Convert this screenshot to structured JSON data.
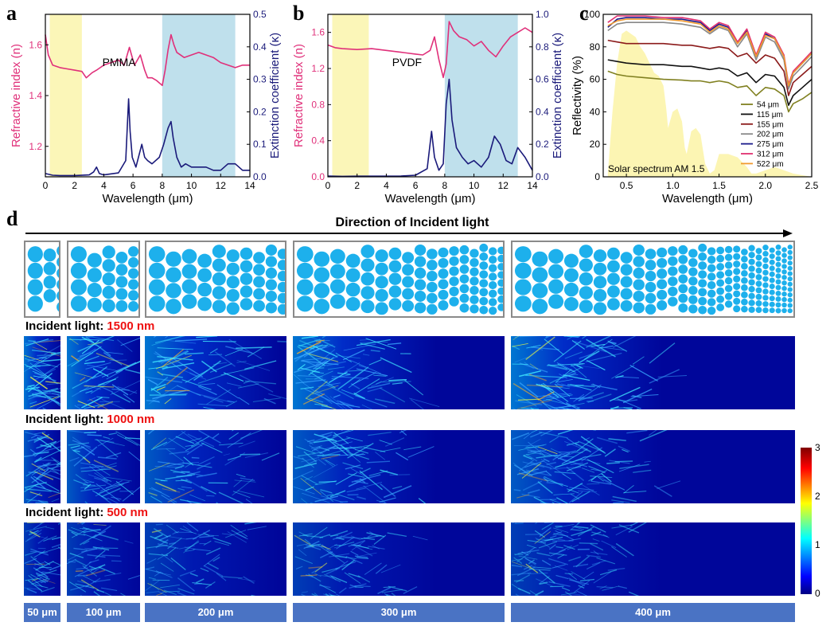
{
  "panel_letters": {
    "a": "a",
    "b": "b",
    "c": "c",
    "d": "d"
  },
  "colors": {
    "n_curve": "#e0307a",
    "k_curve": "#1a1a7a",
    "yellow_band": "#fbf6b8",
    "blue_band": "#bfe0ec",
    "sphere": "#1db0ec",
    "label_bg": "#4a73c4",
    "accent": "#ee1111"
  },
  "chart_data": [
    {
      "id": "a",
      "type": "line",
      "xlabel": "Wavelength (μm)",
      "ylabel_left": "Refractive index (n)",
      "ylabel_right": "Extinction coefficient (κ)",
      "annotation": "PMMA",
      "xlim": [
        0,
        14
      ],
      "xticks": [
        0,
        2,
        4,
        6,
        8,
        10,
        12,
        14
      ],
      "ylim_left": [
        1.08,
        1.72
      ],
      "yticks_left": [
        1.2,
        1.4,
        1.6
      ],
      "ylim_right": [
        0,
        0.5
      ],
      "yticks_right": [
        0.0,
        0.1,
        0.2,
        0.3,
        0.4,
        0.5
      ],
      "bands": [
        {
          "from": 0.3,
          "to": 2.5,
          "kind": "yellow"
        },
        {
          "from": 8,
          "to": 13,
          "kind": "blue"
        }
      ],
      "series": [
        {
          "name": "n",
          "axis": "left",
          "x": [
            0.0,
            0.2,
            0.5,
            1.0,
            1.5,
            2.0,
            2.5,
            2.8,
            3.2,
            3.5,
            4.0,
            4.5,
            5.0,
            5.4,
            5.75,
            5.9,
            6.1,
            6.5,
            6.8,
            7.0,
            7.3,
            7.6,
            8.0,
            8.2,
            8.4,
            8.6,
            8.8,
            9.0,
            9.5,
            10,
            10.5,
            11,
            11.5,
            12,
            12.5,
            13,
            13.5,
            14
          ],
          "y": [
            1.64,
            1.56,
            1.52,
            1.51,
            1.505,
            1.5,
            1.495,
            1.47,
            1.49,
            1.5,
            1.52,
            1.53,
            1.54,
            1.52,
            1.59,
            1.56,
            1.52,
            1.56,
            1.5,
            1.47,
            1.47,
            1.46,
            1.44,
            1.5,
            1.58,
            1.64,
            1.6,
            1.57,
            1.55,
            1.56,
            1.57,
            1.56,
            1.55,
            1.53,
            1.52,
            1.51,
            1.52,
            1.52
          ]
        },
        {
          "name": "k",
          "axis": "right",
          "x": [
            0.0,
            0.5,
            1.0,
            2.0,
            3.0,
            3.3,
            3.5,
            3.7,
            4.0,
            5.0,
            5.5,
            5.7,
            5.8,
            5.95,
            6.2,
            6.6,
            6.8,
            7.0,
            7.3,
            7.8,
            8.1,
            8.4,
            8.6,
            8.75,
            9.0,
            9.3,
            9.6,
            10,
            11,
            11.5,
            12,
            12.5,
            13,
            13.5,
            14
          ],
          "y": [
            0.01,
            0.005,
            0.004,
            0.004,
            0.006,
            0.015,
            0.03,
            0.01,
            0.006,
            0.012,
            0.05,
            0.24,
            0.14,
            0.06,
            0.03,
            0.1,
            0.06,
            0.05,
            0.04,
            0.06,
            0.1,
            0.15,
            0.17,
            0.12,
            0.06,
            0.03,
            0.04,
            0.03,
            0.03,
            0.02,
            0.02,
            0.04,
            0.04,
            0.02,
            0.02
          ]
        }
      ]
    },
    {
      "id": "b",
      "type": "line",
      "xlabel": "Wavelength (μm)",
      "ylabel_left": "Refractive index (n)",
      "ylabel_right": "Extinction coefficient (κ)",
      "annotation": "PVDF",
      "xlim": [
        0,
        14
      ],
      "xticks": [
        0,
        2,
        4,
        6,
        8,
        10,
        12,
        14
      ],
      "ylim_left": [
        0,
        1.8
      ],
      "yticks_left": [
        0.0,
        0.4,
        0.8,
        1.2,
        1.6
      ],
      "ylim_right": [
        0,
        1.0
      ],
      "yticks_right": [
        0.0,
        0.2,
        0.4,
        0.6,
        0.8,
        1.0
      ],
      "bands": [
        {
          "from": 0.3,
          "to": 2.8,
          "kind": "yellow"
        },
        {
          "from": 8,
          "to": 13,
          "kind": "blue"
        }
      ],
      "series": [
        {
          "name": "n",
          "axis": "left",
          "x": [
            0.0,
            0.5,
            1.0,
            2.0,
            3.0,
            4.0,
            5.0,
            6.0,
            6.5,
            7.0,
            7.3,
            7.6,
            7.9,
            8.1,
            8.3,
            8.6,
            9.0,
            9.5,
            10,
            10.5,
            11,
            11.5,
            12,
            12.5,
            13,
            13.5,
            14
          ],
          "y": [
            1.46,
            1.43,
            1.42,
            1.41,
            1.42,
            1.4,
            1.38,
            1.36,
            1.35,
            1.4,
            1.55,
            1.3,
            1.1,
            1.25,
            1.72,
            1.62,
            1.55,
            1.52,
            1.45,
            1.5,
            1.4,
            1.33,
            1.45,
            1.55,
            1.6,
            1.65,
            1.6
          ]
        },
        {
          "name": "k",
          "axis": "right",
          "x": [
            0.0,
            1.0,
            2.0,
            3.0,
            4.0,
            5.0,
            6.0,
            6.8,
            7.1,
            7.3,
            7.6,
            7.9,
            8.1,
            8.3,
            8.5,
            8.8,
            9.2,
            9.6,
            10,
            10.5,
            11,
            11.4,
            11.8,
            12.2,
            12.6,
            13,
            13.5,
            14
          ],
          "y": [
            0.005,
            0.003,
            0.004,
            0.004,
            0.004,
            0.005,
            0.01,
            0.05,
            0.28,
            0.12,
            0.04,
            0.08,
            0.45,
            0.6,
            0.35,
            0.18,
            0.12,
            0.08,
            0.1,
            0.06,
            0.12,
            0.25,
            0.2,
            0.1,
            0.08,
            0.18,
            0.12,
            0.04
          ]
        }
      ]
    },
    {
      "id": "c",
      "type": "line",
      "xlabel": "Wavelength (μm)",
      "ylabel": "Reflectivity (%)",
      "xlim": [
        0.25,
        2.5
      ],
      "xticks": [
        0.5,
        1.0,
        1.5,
        2.0,
        2.5
      ],
      "ylim": [
        0,
        100
      ],
      "yticks": [
        0,
        20,
        40,
        60,
        80,
        100
      ],
      "annotation": "Solar spectrum AM 1.5",
      "x": [
        0.3,
        0.4,
        0.5,
        0.7,
        0.9,
        1.1,
        1.2,
        1.3,
        1.4,
        1.5,
        1.6,
        1.7,
        1.8,
        1.9,
        2.0,
        2.1,
        2.2,
        2.25,
        2.3,
        2.4,
        2.5
      ],
      "series": [
        {
          "name": "54 μm",
          "color": "#808020",
          "values": [
            65,
            63,
            62,
            61,
            60,
            59.5,
            59,
            59,
            58,
            59,
            58,
            55,
            56,
            50,
            55,
            54,
            50,
            40,
            45,
            48,
            52
          ]
        },
        {
          "name": "115 μm",
          "color": "#111111",
          "values": [
            72,
            71,
            70,
            69,
            69,
            68,
            68,
            67,
            66,
            67,
            66,
            62,
            64,
            58,
            63,
            62,
            55,
            44,
            50,
            55,
            60
          ]
        },
        {
          "name": "155 μm",
          "color": "#8b1a1a",
          "values": [
            84,
            83,
            82,
            82,
            82,
            81,
            81,
            80,
            79,
            80,
            79,
            74,
            76,
            70,
            75,
            73,
            65,
            50,
            58,
            63,
            68
          ]
        },
        {
          "name": "202 μm",
          "color": "#888888",
          "values": [
            90,
            94,
            95,
            95,
            95,
            94,
            93,
            92,
            88,
            92,
            90,
            80,
            88,
            72,
            86,
            83,
            72,
            54,
            62,
            68,
            74
          ]
        },
        {
          "name": "275 μm",
          "color": "#1a1a8b",
          "values": [
            92,
            97,
            98,
            98,
            97,
            97,
            96,
            95,
            90,
            94,
            92,
            82,
            90,
            74,
            88,
            85,
            74,
            56,
            64,
            70,
            76
          ]
        },
        {
          "name": "312 μm",
          "color": "#e03070",
          "values": [
            95,
            99,
            99,
            99,
            98,
            98,
            97,
            96,
            91,
            95,
            93,
            83,
            91,
            75,
            89,
            86,
            75,
            57,
            65,
            71,
            77
          ]
        },
        {
          "name": "522 μm",
          "color": "#f09a30",
          "values": [
            93,
            96,
            97,
            97,
            97,
            96,
            95,
            94,
            89,
            93,
            91,
            82,
            89,
            74,
            87,
            85,
            74,
            56,
            64,
            70,
            76
          ]
        }
      ],
      "solar_x": [
        0.3,
        0.35,
        0.4,
        0.45,
        0.5,
        0.55,
        0.6,
        0.65,
        0.7,
        0.75,
        0.8,
        0.85,
        0.9,
        0.93,
        0.95,
        1.0,
        1.05,
        1.1,
        1.13,
        1.15,
        1.2,
        1.25,
        1.3,
        1.35,
        1.4,
        1.45,
        1.5,
        1.6,
        1.7,
        1.8,
        1.85,
        1.9,
        2.0,
        2.1,
        2.2,
        2.3,
        2.4,
        2.5
      ],
      "solar_y": [
        2,
        40,
        70,
        88,
        90,
        88,
        86,
        80,
        76,
        70,
        64,
        62,
        56,
        42,
        30,
        40,
        42,
        34,
        18,
        14,
        28,
        30,
        26,
        8,
        2,
        4,
        14,
        14,
        12,
        6,
        2,
        2,
        4,
        6,
        4,
        2,
        1,
        0
      ]
    },
    {
      "id": "d",
      "type": "heatmap",
      "title": "Direction of Incident light",
      "colorbar": {
        "min": 0,
        "max": 3,
        "ticks": [
          "0",
          "1",
          "2",
          "3"
        ]
      },
      "rows": [
        {
          "label": "Incident light:",
          "wavelength": "1500 nm",
          "intensity": 1.0
        },
        {
          "label": "Incident light:",
          "wavelength": "1000 nm",
          "intensity": 0.75
        },
        {
          "label": "Incident light:",
          "wavelength": "500 nm",
          "intensity": 0.5
        }
      ],
      "columns": [
        {
          "label": "50 μm",
          "thickness_um": 50
        },
        {
          "label": "100 μm",
          "thickness_um": 100
        },
        {
          "label": "200 μm",
          "thickness_um": 200
        },
        {
          "label": "300 μm",
          "thickness_um": 300
        },
        {
          "label": "400 μm",
          "thickness_um": 400
        }
      ]
    }
  ]
}
